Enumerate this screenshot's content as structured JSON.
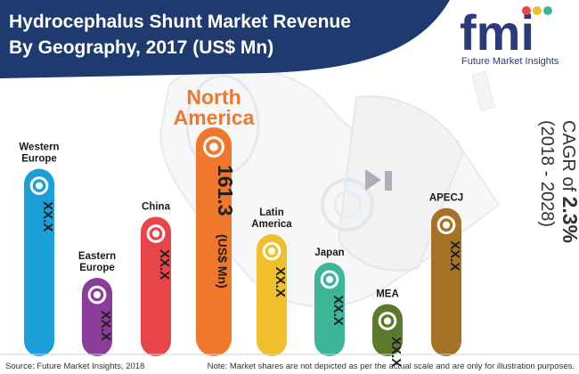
{
  "header": {
    "title_line1": "Hydrocephalus Shunt Market Revenue",
    "title_line2": "By Geography, 2017 (US$ Mn)"
  },
  "logo": {
    "letters": "fmi",
    "name": "Future Market Insights"
  },
  "cagr": {
    "prefix": "CAGR of ",
    "value": "2.3%",
    "period": "(2018 - 2028)"
  },
  "highlight_label": {
    "line1": "North",
    "line2": "America"
  },
  "footer": {
    "source": "Source: Future Market Insights, 2018",
    "note": "Note: Market shares are not depicted as per the actual scale and are only for illustration purposes."
  },
  "colors": {
    "header_bg": "#1e3a6e",
    "accent_orange": "#f0782c",
    "western_europe": "#1a9fd8",
    "eastern_europe": "#8b3d9a",
    "china": "#e8454a",
    "north_america": "#f0782c",
    "latin_america": "#f0c02c",
    "japan": "#3cb59a",
    "mea": "#5b7a2e",
    "apecj": "#a57226"
  },
  "chart_data": {
    "type": "bar",
    "title": "Hydrocephalus Shunt Market Revenue By Geography, 2017 (US$ Mn)",
    "unit": "US$ Mn",
    "categories": [
      "Western Europe",
      "Eastern Europe",
      "China",
      "North America",
      "Latin America",
      "Japan",
      "MEA",
      "APECJ"
    ],
    "category_lines": [
      [
        "Western",
        "Europe"
      ],
      [
        "Eastern",
        "Europe"
      ],
      [
        "China"
      ],
      [],
      [
        "Latin",
        "America"
      ],
      [
        "Japan"
      ],
      [
        "MEA"
      ],
      [
        "APECJ"
      ]
    ],
    "values": [
      null,
      null,
      null,
      161.3,
      null,
      null,
      null,
      null
    ],
    "value_labels": [
      "XX.X",
      "XX.X",
      "XX.X",
      "161.3",
      "XX.X",
      "XX.X",
      "XX.X",
      "XX.X"
    ],
    "value_unit_label": "(US$ Mn)",
    "illustrative_levels": [
      0.81,
      0.31,
      0.59,
      1.0,
      0.51,
      0.38,
      0.19,
      0.63
    ],
    "highlight_index": 3,
    "colors": [
      "#1a9fd8",
      "#8b3d9a",
      "#e8454a",
      "#f0782c",
      "#f0c02c",
      "#3cb59a",
      "#5b7a2e",
      "#a57226"
    ],
    "grid": false,
    "legend": "none"
  }
}
